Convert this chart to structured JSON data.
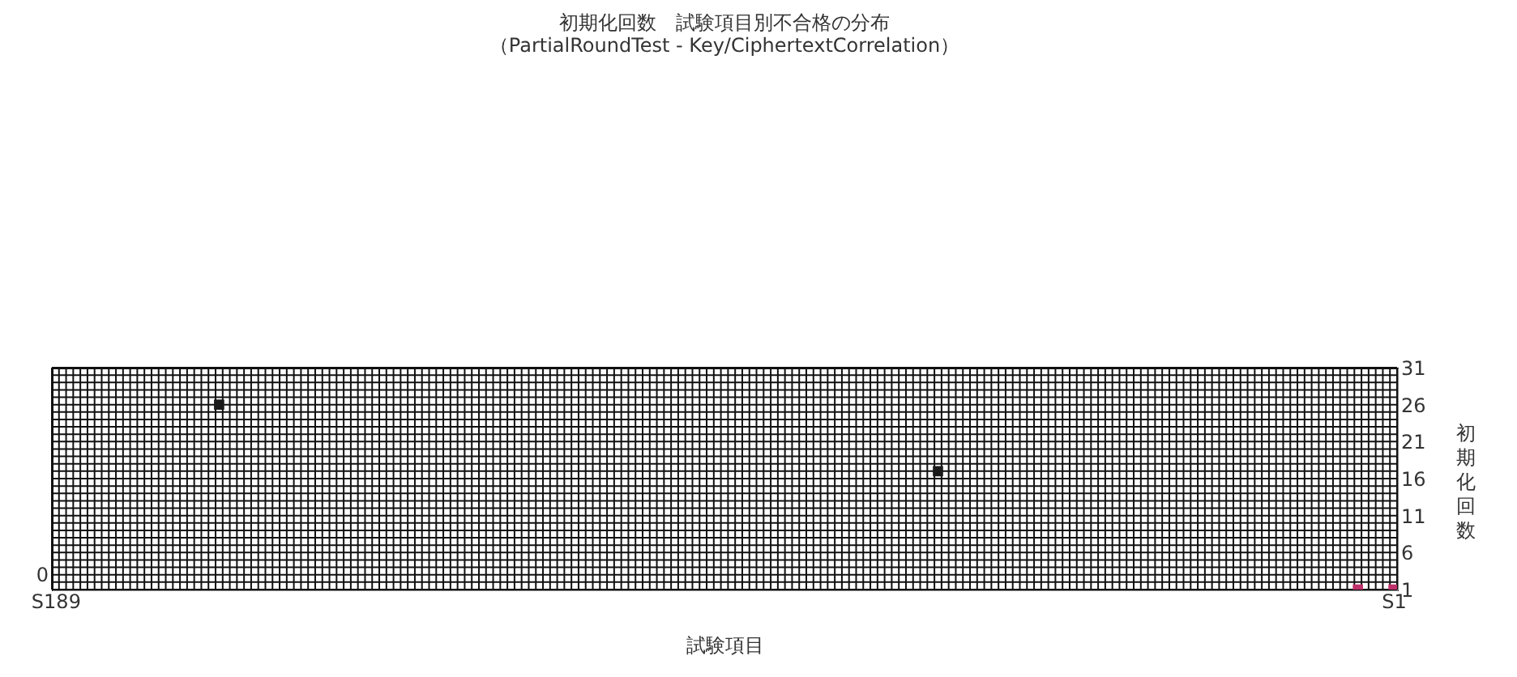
{
  "chart_data": {
    "type": "scatter",
    "title": "初期化回数　試験項目別不合格の分布",
    "subtitle": "（PartialRoundTest - Key/CiphertextCorrelation）",
    "xlabel": "試験項目",
    "ylabel": "初期化回数",
    "categories": [
      "S189",
      null,
      null,
      null,
      null,
      null,
      null,
      null,
      null,
      null,
      null,
      null,
      null,
      null,
      null,
      null,
      null,
      null,
      null,
      null,
      null,
      null,
      null,
      null,
      null,
      null,
      null,
      null,
      null,
      null,
      null,
      null,
      null,
      null,
      null,
      null,
      null,
      null,
      null,
      null,
      null,
      null,
      null,
      null,
      null,
      null,
      null,
      null,
      null,
      null,
      null,
      null,
      null,
      null,
      null,
      null,
      null,
      null,
      null,
      null,
      null,
      null,
      null,
      null,
      null,
      null,
      null,
      null,
      null,
      null,
      null,
      null,
      null,
      null,
      null,
      null,
      null,
      null,
      null,
      null,
      null,
      null,
      null,
      null,
      null,
      null,
      null,
      null,
      null,
      null,
      null,
      null,
      null,
      null,
      null,
      null,
      null,
      null,
      null,
      null,
      null,
      null,
      null,
      null,
      null,
      null,
      null,
      null,
      null,
      null,
      null,
      null,
      null,
      null,
      null,
      null,
      null,
      null,
      null,
      null,
      null,
      null,
      null,
      null,
      null,
      null,
      null,
      null,
      null,
      null,
      null,
      null,
      null,
      null,
      null,
      null,
      null,
      null,
      null,
      null,
      null,
      null,
      null,
      null,
      null,
      null,
      null,
      null,
      null,
      null,
      null,
      null,
      null,
      null,
      null,
      null,
      null,
      null,
      null,
      null,
      null,
      null,
      null,
      null,
      null,
      null,
      null,
      null,
      null,
      null,
      null,
      null,
      null,
      null,
      null,
      null,
      null,
      null,
      null,
      null,
      null,
      null,
      null,
      null,
      null,
      null,
      null,
      null,
      "S1"
    ],
    "series": [
      {
        "color": "#1a1a1a",
        "values": [
          null,
          null,
          null,
          null,
          null,
          null,
          null,
          null,
          null,
          null,
          null,
          null,
          null,
          null,
          null,
          null,
          null,
          null,
          null,
          null,
          null,
          null,
          null,
          26,
          null,
          null,
          null,
          null,
          null,
          null,
          null,
          null,
          null,
          null,
          null,
          null,
          null,
          null,
          null,
          null,
          null,
          null,
          null,
          null,
          null,
          null,
          null,
          null,
          null,
          null,
          null,
          null,
          null,
          null,
          null,
          null,
          null,
          null,
          null,
          null,
          null,
          null,
          null,
          null,
          null,
          null,
          null,
          null,
          null,
          null,
          null,
          null,
          null,
          null,
          null,
          null,
          null,
          null,
          null,
          null,
          null,
          null,
          null,
          null,
          null,
          null,
          null,
          null,
          null,
          null,
          null,
          null,
          null,
          null,
          null,
          null,
          null,
          null,
          null,
          null,
          null,
          null,
          null,
          null,
          null,
          null,
          null,
          null,
          null,
          null,
          null,
          null,
          null,
          null,
          null,
          null,
          null,
          null,
          null,
          null,
          null,
          null,
          null,
          null,
          17,
          null,
          null,
          null,
          null,
          null,
          null,
          null,
          null,
          null,
          null,
          null,
          null,
          null,
          null,
          null,
          null,
          null,
          null,
          null,
          null,
          null,
          null,
          null,
          null,
          null,
          null,
          null,
          null,
          null,
          null,
          null,
          null,
          null,
          null,
          null,
          null,
          null,
          null,
          null,
          null,
          null,
          null,
          null,
          null,
          null,
          null,
          null,
          null,
          null,
          null,
          null,
          null,
          null,
          null,
          null,
          null,
          null,
          null,
          null,
          null,
          null,
          null,
          null,
          null
        ]
      },
      {
        "color": "#c0306a",
        "values": [
          null,
          null,
          null,
          null,
          null,
          null,
          null,
          null,
          null,
          null,
          null,
          null,
          null,
          null,
          null,
          null,
          null,
          null,
          null,
          null,
          null,
          null,
          null,
          null,
          null,
          null,
          null,
          null,
          null,
          null,
          null,
          null,
          null,
          null,
          null,
          null,
          null,
          null,
          null,
          null,
          null,
          null,
          null,
          null,
          null,
          null,
          null,
          null,
          null,
          null,
          null,
          null,
          null,
          null,
          null,
          null,
          null,
          null,
          null,
          null,
          null,
          null,
          null,
          null,
          null,
          null,
          null,
          null,
          null,
          null,
          null,
          null,
          null,
          null,
          null,
          null,
          null,
          null,
          null,
          null,
          null,
          null,
          null,
          null,
          null,
          null,
          null,
          null,
          null,
          null,
          null,
          null,
          null,
          null,
          null,
          null,
          null,
          null,
          null,
          null,
          null,
          null,
          null,
          null,
          null,
          null,
          null,
          null,
          null,
          null,
          null,
          null,
          null,
          null,
          null,
          null,
          null,
          null,
          null,
          null,
          null,
          null,
          null,
          null,
          null,
          null,
          null,
          null,
          null,
          null,
          null,
          null,
          null,
          null,
          null,
          null,
          null,
          null,
          null,
          null,
          null,
          null,
          null,
          null,
          null,
          null,
          null,
          null,
          null,
          null,
          null,
          null,
          null,
          null,
          null,
          null,
          null,
          null,
          null,
          null,
          null,
          null,
          null,
          null,
          null,
          null,
          null,
          null,
          null,
          null,
          null,
          null,
          null,
          null,
          null,
          null,
          null,
          null,
          null,
          null,
          null,
          null,
          null,
          1,
          null,
          null,
          null,
          null,
          1
        ]
      }
    ],
    "ylim": [
      1,
      31
    ],
    "yticks": [
      1,
      6,
      11,
      16,
      21,
      26,
      31
    ],
    "grid": true,
    "marker": "square",
    "annotations": [
      "0"
    ]
  }
}
